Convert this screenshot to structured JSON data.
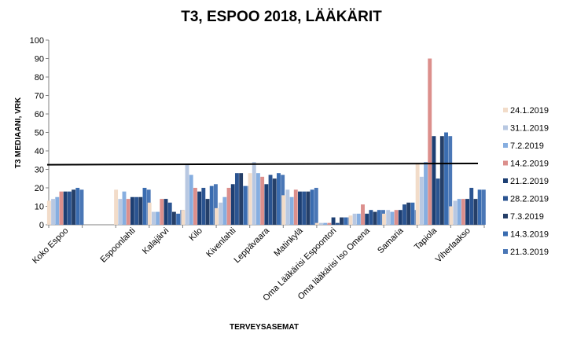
{
  "chart_data": {
    "type": "bar",
    "title": "T3, ESPOO 2018, LÄÄKÄRIT",
    "xlabel": "TERVEYSASEMAT",
    "ylabel": "T3 MEDIAANI, VRK",
    "ylim": [
      0,
      100
    ],
    "yticks": [
      0,
      10,
      20,
      30,
      40,
      50,
      60,
      70,
      80,
      90,
      100
    ],
    "grid": false,
    "legend_position": "right",
    "reference_line": {
      "y_start": 32.5,
      "y_end": 33.2,
      "color": "#000000"
    },
    "categories": [
      "Koko Espoo",
      "",
      "Espoonlahti",
      "Kalajärvi",
      "Kilo",
      "Kivenlahti",
      "Leppävaara",
      "Matinkylä",
      "Oma Lääkärisi Espoontori",
      "Oma lääkärisi Iso Omena",
      "Samaria",
      "Tapiola",
      "Viherlaakso"
    ],
    "series": [
      {
        "name": "24.1.2019",
        "color": "#f2dcc9",
        "values": [
          13,
          null,
          19,
          12,
          8,
          9,
          28,
          16,
          1,
          5,
          6,
          33,
          10
        ]
      },
      {
        "name": "31.1.2019",
        "color": "#b8c8e2",
        "values": [
          14,
          null,
          14,
          7,
          33,
          12,
          34,
          19,
          1,
          6,
          8,
          26,
          13
        ]
      },
      {
        "name": "7.2.2019",
        "color": "#86aee0",
        "values": [
          15,
          null,
          18,
          7,
          27,
          15,
          28,
          15,
          1,
          6,
          7,
          34,
          14
        ]
      },
      {
        "name": "14.2.2019",
        "color": "#dc8f8c",
        "values": [
          18,
          null,
          14,
          14,
          20,
          20,
          26,
          19,
          1,
          11,
          8,
          90,
          14
        ]
      },
      {
        "name": "21.2.2019",
        "color": "#1d3f73",
        "values": [
          18,
          null,
          15,
          14,
          18,
          22,
          22,
          18,
          4,
          6,
          8,
          48,
          14
        ]
      },
      {
        "name": "28.2.2019",
        "color": "#2b5491",
        "values": [
          18,
          null,
          15,
          12,
          20,
          28,
          27,
          18,
          1,
          8,
          11,
          25,
          20
        ]
      },
      {
        "name": "7.3.2019",
        "color": "#253f68",
        "values": [
          19,
          null,
          15,
          7,
          14,
          28,
          25,
          18,
          4,
          7,
          12,
          48,
          14
        ]
      },
      {
        "name": "14.3.2019",
        "color": "#3a6cb0",
        "values": [
          20,
          null,
          20,
          6,
          21,
          21,
          28,
          19,
          4,
          8,
          12,
          50,
          19
        ]
      },
      {
        "name": "21.3.2019",
        "color": "#4a77b6",
        "values": [
          19,
          null,
          19,
          8,
          22,
          21,
          27,
          20,
          4,
          8,
          8,
          48,
          19
        ]
      }
    ]
  }
}
